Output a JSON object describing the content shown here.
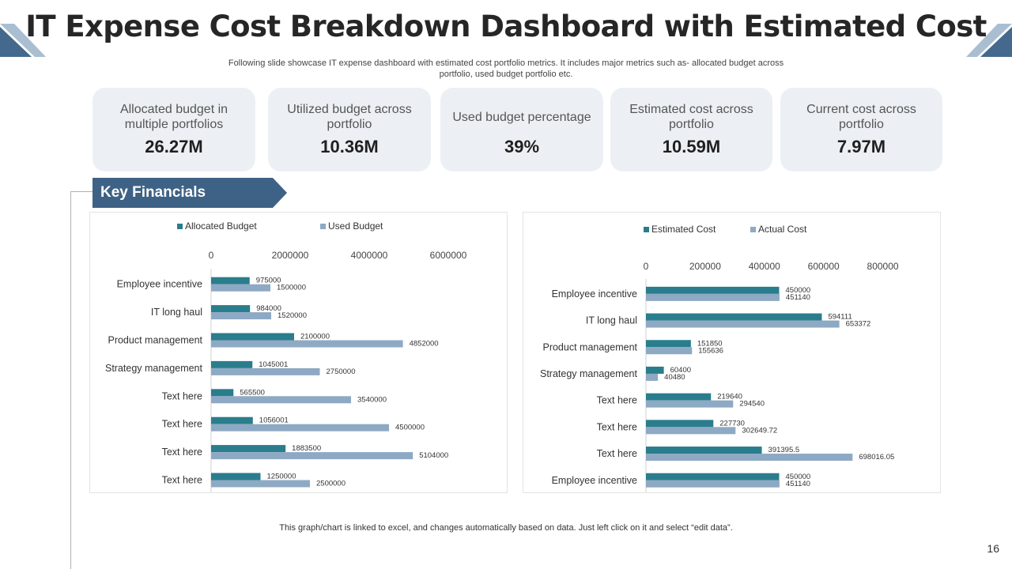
{
  "header": {
    "title": "IT Expense Cost Breakdown Dashboard with Estimated Cost",
    "subtitle_line1": "Following slide showcase IT expense dashboard with estimated cost portfolio metrics. It includes major metrics such as- allocated budget across",
    "subtitle_line2": "portfolio, used budget portfolio etc."
  },
  "kpis": [
    {
      "label": "Allocated budget in multiple portfolios",
      "value": "26.27M"
    },
    {
      "label": "Utilized budget across portfolio",
      "value": "10.36M"
    },
    {
      "label": "Used budget percentage",
      "value": "39%"
    },
    {
      "label": "Estimated cost across portfolio",
      "value": "10.59M"
    },
    {
      "label": "Current cost across portfolio",
      "value": "7.97M"
    }
  ],
  "section": {
    "banner_label": "Key Financials"
  },
  "colors": {
    "series_a": "#2a7d8c",
    "series_b": "#8ea9c4",
    "accent": "#3e6285",
    "corner": "#44698c"
  },
  "chart_data": [
    {
      "type": "bar",
      "orientation": "horizontal",
      "categories": [
        "Employee incentive",
        "IT long haul",
        "Product management",
        "Strategy management",
        "Text here",
        "Text here",
        "Text here",
        "Text here"
      ],
      "series": [
        {
          "name": "Allocated Budget",
          "values": [
            975000,
            984000,
            2100000,
            1045001,
            565500,
            1056001,
            1883500,
            1250000
          ],
          "labels": [
            "975000",
            "984000",
            "2100000",
            "1045001",
            "565500",
            "1056001",
            "1883500",
            "1250000"
          ]
        },
        {
          "name": "Used Budget",
          "values": [
            1500000,
            1520000,
            4852000,
            2750000,
            3540000,
            4500000,
            5104000,
            2500000
          ],
          "labels": [
            "1500000",
            "1520000",
            "4852000",
            "2750000",
            "3540000",
            "4500000",
            "5104000",
            "2500000"
          ]
        }
      ],
      "xlim": [
        0,
        7000000
      ],
      "ticks": [
        0,
        2000000,
        4000000,
        6000000
      ],
      "tick_labels": [
        "0",
        "2000000",
        "4000000",
        "6000000"
      ],
      "legend": "top"
    },
    {
      "type": "bar",
      "orientation": "horizontal",
      "categories": [
        "Employee incentive",
        "IT long haul",
        "Product management",
        "Strategy management",
        "Text here",
        "Text here",
        "Text here",
        "Employee incentive"
      ],
      "series": [
        {
          "name": "Estimated Cost",
          "values": [
            450000,
            594111,
            151850,
            60400,
            219640,
            227730,
            391395.5,
            450000
          ],
          "labels": [
            "450000",
            "594111",
            "151850",
            "60400",
            "219640",
            "227730",
            "391395.5",
            "450000"
          ]
        },
        {
          "name": "Actual Cost",
          "values": [
            451140,
            653372,
            155636,
            40480,
            294540,
            302649.72,
            698016.05,
            451140
          ],
          "labels": [
            "451140",
            "653372",
            "155636",
            "40480",
            "294540",
            "302649.72",
            "698016.05",
            "451140"
          ]
        }
      ],
      "xlim": [
        0,
        900000
      ],
      "ticks": [
        0,
        200000,
        400000,
        600000,
        800000
      ],
      "tick_labels": [
        "0",
        "200000",
        "400000",
        "600000",
        "800000"
      ],
      "legend": "top"
    }
  ],
  "footer": {
    "note": "This graph/chart is linked to excel, and changes automatically based on data. Just left click on it and select “edit data”.",
    "page_number": "16"
  }
}
